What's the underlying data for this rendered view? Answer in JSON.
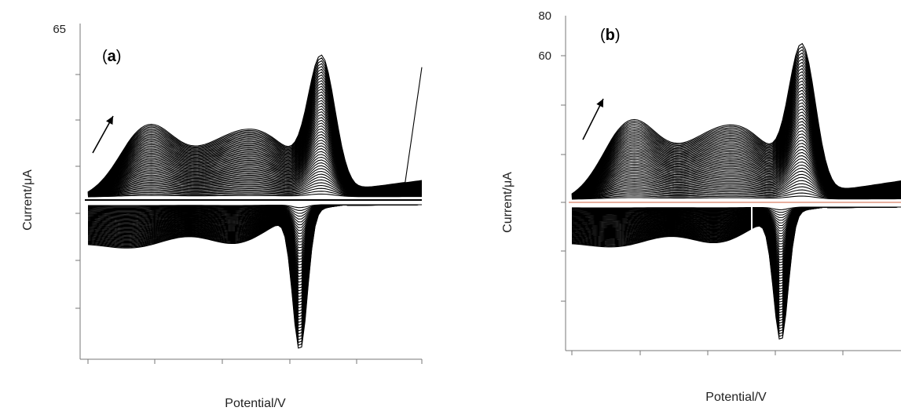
{
  "chart_data": [
    {
      "type": "line",
      "panel_label": "a",
      "xlabel": "Potential/V",
      "ylabel": "Current/μA",
      "y_tick_labels": [
        "65"
      ],
      "grid": false,
      "cycles_shown": 50,
      "annotation": "arrow indicating increasing current with successive cycles",
      "peaks": {
        "anodic_main": "sharp",
        "cathodic_main": "sharp"
      },
      "colors": {
        "curves": "#000000",
        "baseline": "#000000"
      }
    },
    {
      "type": "line",
      "panel_label": "b",
      "xlabel": "Potential/V",
      "ylabel": "Current/μA",
      "y_tick_labels": [
        "80",
        "60"
      ],
      "grid": false,
      "cycles_shown": 50,
      "annotation": "arrow indicating increasing current with successive cycles",
      "peaks": {
        "anodic_main": "sharp",
        "cathodic_main": "sharp"
      },
      "colors": {
        "curves": "#000000",
        "baseline": "#e8b0a0"
      }
    }
  ]
}
